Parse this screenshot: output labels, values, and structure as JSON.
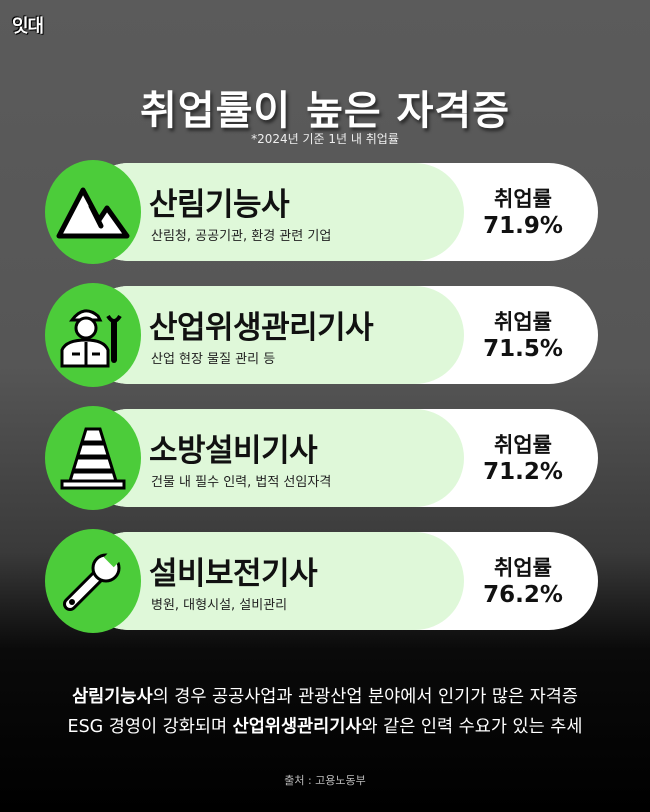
{
  "logo": "잇대",
  "title": "취업률이 높은 자격증",
  "note": "*2024년 기준 1년 내 취업률",
  "accent_color": "#4ccc3a",
  "cards": [
    {
      "name": "산림기능사",
      "desc": "산림청, 공공기관, 환경 관련 기업",
      "rate_label": "취업률",
      "rate": "71.9%",
      "icon": "mountain-icon"
    },
    {
      "name": "산업위생관리기사",
      "desc": "산업 현장 물질 관리 등",
      "rate_label": "취업률",
      "rate": "71.5%",
      "icon": "worker-wrench-icon"
    },
    {
      "name": "소방설비기사",
      "desc": "건물 내 필수 인력, 법적 선임자격",
      "rate_label": "취업률",
      "rate": "71.2%",
      "icon": "traffic-cone-icon"
    },
    {
      "name": "설비보전기사",
      "desc": "병원, 대형시설, 설비관리",
      "rate_label": "취업률",
      "rate": "76.2%",
      "icon": "wrench-icon"
    }
  ],
  "summary": {
    "line1_bold": "삼림기능사",
    "line1_rest": "의 경우 공공사업과 관광산업 분야에서 인기가 많은 자격증",
    "line2_pre": "ESG 경영이 강화되며 ",
    "line2_bold": "산업위생관리기사",
    "line2_rest": "와 같은 인력 수요가 있는 추세"
  },
  "source": "출처 : 고용노동부"
}
